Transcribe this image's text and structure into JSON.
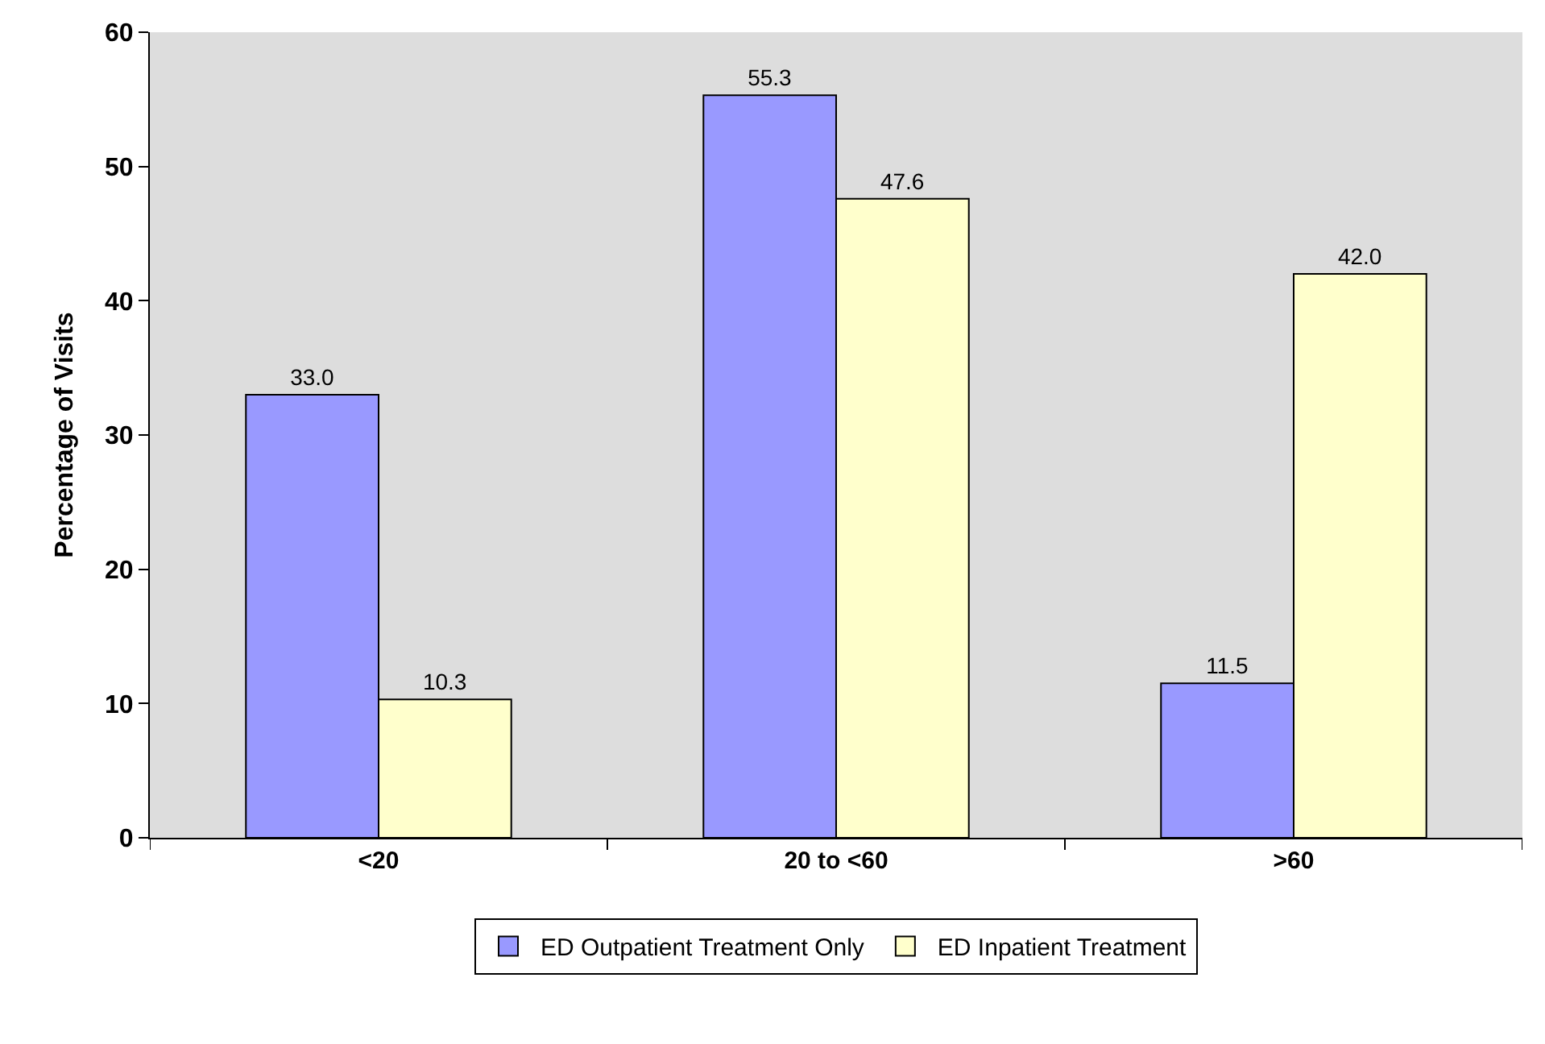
{
  "chart_data": {
    "type": "bar",
    "ylabel": "Percentage of Visits",
    "categories": [
      "<20",
      "20 to <60",
      ">60"
    ],
    "series": [
      {
        "name": "ED Outpatient Treatment Only",
        "color": "#9999ff",
        "values": [
          33.0,
          55.3,
          11.5
        ],
        "value_labels": [
          "33.0",
          "55.3",
          "11.5"
        ]
      },
      {
        "name": "ED Inpatient Treatment",
        "color": "#ffffcc",
        "values": [
          10.3,
          47.6,
          42.0
        ],
        "value_labels": [
          "10.3",
          "47.6",
          "42.0"
        ]
      }
    ],
    "ylim": [
      0,
      60
    ],
    "yticks": [
      0,
      10,
      20,
      30,
      40,
      50,
      60
    ],
    "grid": false,
    "legend": "bottom"
  }
}
